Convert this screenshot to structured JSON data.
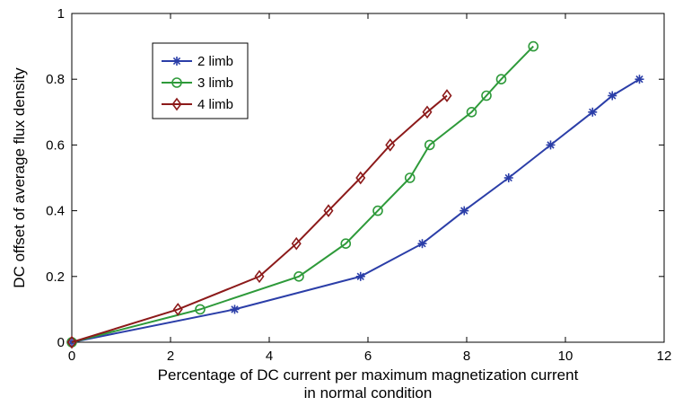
{
  "chart_data": {
    "type": "line",
    "title": "",
    "xlabel_line1": "Percentage of DC current per maximum magnetization current",
    "xlabel_line2": "in normal condition",
    "ylabel": "DC offset of average flux density",
    "xlim": [
      0,
      12
    ],
    "ylim": [
      0,
      1
    ],
    "xticks": [
      0,
      2,
      4,
      6,
      8,
      10,
      12
    ],
    "yticks": [
      0,
      0.2,
      0.4,
      0.6,
      0.8,
      1
    ],
    "xtick_labels": [
      "0",
      "2",
      "4",
      "6",
      "8",
      "10",
      "12"
    ],
    "ytick_labels": [
      "0",
      "0.2",
      "0.4",
      "0.6",
      "0.8",
      "1"
    ],
    "grid": false,
    "legend_position": "top-left",
    "series": [
      {
        "name": "2 limb",
        "color": "#2b3ea8",
        "marker": "asterisk",
        "x": [
          0,
          3.3,
          5.85,
          7.1,
          7.95,
          8.85,
          9.7,
          10.55,
          10.95,
          11.5
        ],
        "y": [
          0,
          0.1,
          0.2,
          0.3,
          0.4,
          0.5,
          0.6,
          0.7,
          0.75,
          0.8
        ]
      },
      {
        "name": "3 limb",
        "color": "#2e9a3a",
        "marker": "circle",
        "x": [
          0,
          2.6,
          4.6,
          5.55,
          6.2,
          6.85,
          7.25,
          8.1,
          8.4,
          8.7,
          9.35
        ],
        "y": [
          0,
          0.1,
          0.2,
          0.3,
          0.4,
          0.5,
          0.6,
          0.7,
          0.75,
          0.8,
          0.9
        ]
      },
      {
        "name": "4 limb",
        "color": "#8c1a1a",
        "marker": "diamond",
        "x": [
          0,
          2.15,
          3.8,
          4.55,
          5.2,
          5.85,
          6.45,
          7.2,
          7.6
        ],
        "y": [
          0,
          0.1,
          0.2,
          0.3,
          0.4,
          0.5,
          0.6,
          0.7,
          0.75
        ]
      }
    ]
  }
}
